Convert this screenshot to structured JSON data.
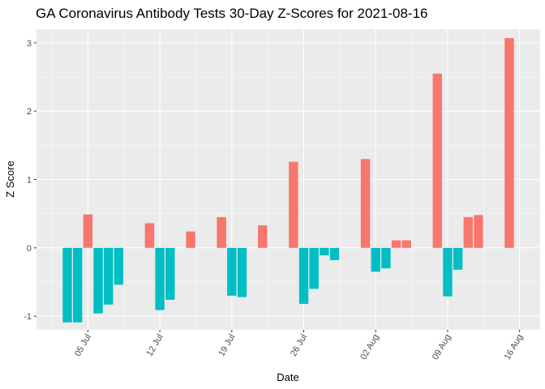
{
  "chart_data": {
    "type": "bar",
    "title": "GA Coronavirus Antibody Tests 30-Day Z-Scores for 2021-08-16",
    "xlabel": "Date",
    "ylabel": "Z Score",
    "ylim": [
      -1.2,
      3.2
    ],
    "yticks": [
      -1,
      0,
      1,
      2,
      3
    ],
    "xticks": [
      {
        "date": "2021-07-05",
        "label": "05 Jul"
      },
      {
        "date": "2021-07-12",
        "label": "12 Jul"
      },
      {
        "date": "2021-07-19",
        "label": "19 Jul"
      },
      {
        "date": "2021-07-26",
        "label": "26 Jul"
      },
      {
        "date": "2021-08-02",
        "label": "02 Aug"
      },
      {
        "date": "2021-08-09",
        "label": "09 Aug"
      },
      {
        "date": "2021-08-16",
        "label": "16 Aug"
      }
    ],
    "x_range": [
      "2021-06-30",
      "2021-08-18"
    ],
    "grid": true,
    "legend": "none",
    "colors": {
      "positive": "#F8766D",
      "negative": "#00BFC4",
      "panel": "#EBEBEB",
      "grid": "#FFFFFF"
    },
    "points": [
      {
        "date": "2021-07-03",
        "value": -1.09
      },
      {
        "date": "2021-07-04",
        "value": -1.09
      },
      {
        "date": "2021-07-05",
        "value": 0.49
      },
      {
        "date": "2021-07-06",
        "value": -0.96
      },
      {
        "date": "2021-07-07",
        "value": -0.83
      },
      {
        "date": "2021-07-08",
        "value": -0.54
      },
      {
        "date": "2021-07-11",
        "value": 0.36
      },
      {
        "date": "2021-07-12",
        "value": -0.91
      },
      {
        "date": "2021-07-13",
        "value": -0.76
      },
      {
        "date": "2021-07-15",
        "value": 0.24
      },
      {
        "date": "2021-07-18",
        "value": 0.45
      },
      {
        "date": "2021-07-19",
        "value": -0.7
      },
      {
        "date": "2021-07-20",
        "value": -0.72
      },
      {
        "date": "2021-07-22",
        "value": 0.33
      },
      {
        "date": "2021-07-25",
        "value": 1.26
      },
      {
        "date": "2021-07-26",
        "value": -0.82
      },
      {
        "date": "2021-07-27",
        "value": -0.6
      },
      {
        "date": "2021-07-28",
        "value": -0.11
      },
      {
        "date": "2021-07-29",
        "value": -0.18
      },
      {
        "date": "2021-08-01",
        "value": 1.3
      },
      {
        "date": "2021-08-02",
        "value": -0.35
      },
      {
        "date": "2021-08-03",
        "value": -0.3
      },
      {
        "date": "2021-08-04",
        "value": 0.11
      },
      {
        "date": "2021-08-05",
        "value": 0.11
      },
      {
        "date": "2021-08-08",
        "value": 2.55
      },
      {
        "date": "2021-08-09",
        "value": -0.71
      },
      {
        "date": "2021-08-10",
        "value": -0.32
      },
      {
        "date": "2021-08-11",
        "value": 0.45
      },
      {
        "date": "2021-08-12",
        "value": 0.48
      },
      {
        "date": "2021-08-15",
        "value": 3.07
      }
    ]
  }
}
